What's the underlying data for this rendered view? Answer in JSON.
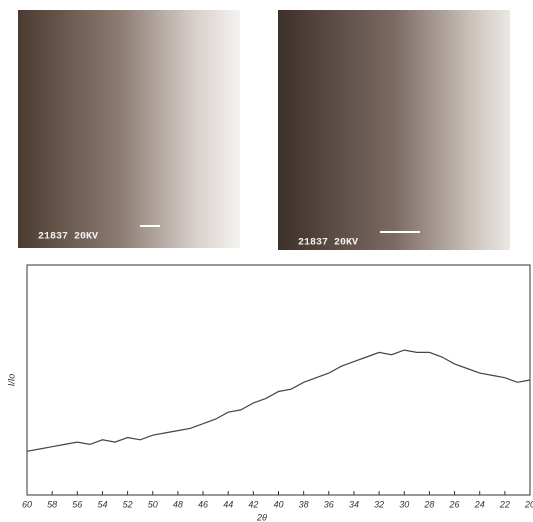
{
  "micrographs": [
    {
      "label": "21837  20KV"
    },
    {
      "label": "21837  20KV"
    }
  ],
  "chart_data": {
    "type": "line",
    "y_label": "I/Io",
    "x_label": "2θ",
    "x": [
      60,
      59,
      58,
      57,
      56,
      55,
      54,
      53,
      52,
      51,
      50,
      49,
      48,
      47,
      46,
      45,
      44,
      43,
      42,
      41,
      40,
      39,
      38,
      37,
      36,
      35,
      34,
      33,
      32,
      31,
      30,
      29,
      28,
      27,
      26,
      25,
      24,
      23,
      22,
      21,
      20
    ],
    "series": [
      {
        "color": "#444444",
        "values": [
          19,
          20,
          21,
          22,
          23,
          22,
          24,
          23,
          25,
          24,
          26,
          27,
          28,
          29,
          31,
          33,
          36,
          37,
          40,
          42,
          45,
          46,
          49,
          51,
          53,
          56,
          58,
          60,
          62,
          61,
          63,
          62,
          62,
          60,
          57,
          55,
          53,
          52,
          51,
          49,
          50
        ]
      }
    ],
    "xlim": [
      60,
      20
    ],
    "ylim": [
      0,
      100
    ],
    "xticks": [
      60,
      58,
      56,
      54,
      52,
      50,
      48,
      46,
      44,
      42,
      40,
      38,
      36,
      34,
      32,
      30,
      28,
      26,
      24,
      22,
      20
    ]
  }
}
